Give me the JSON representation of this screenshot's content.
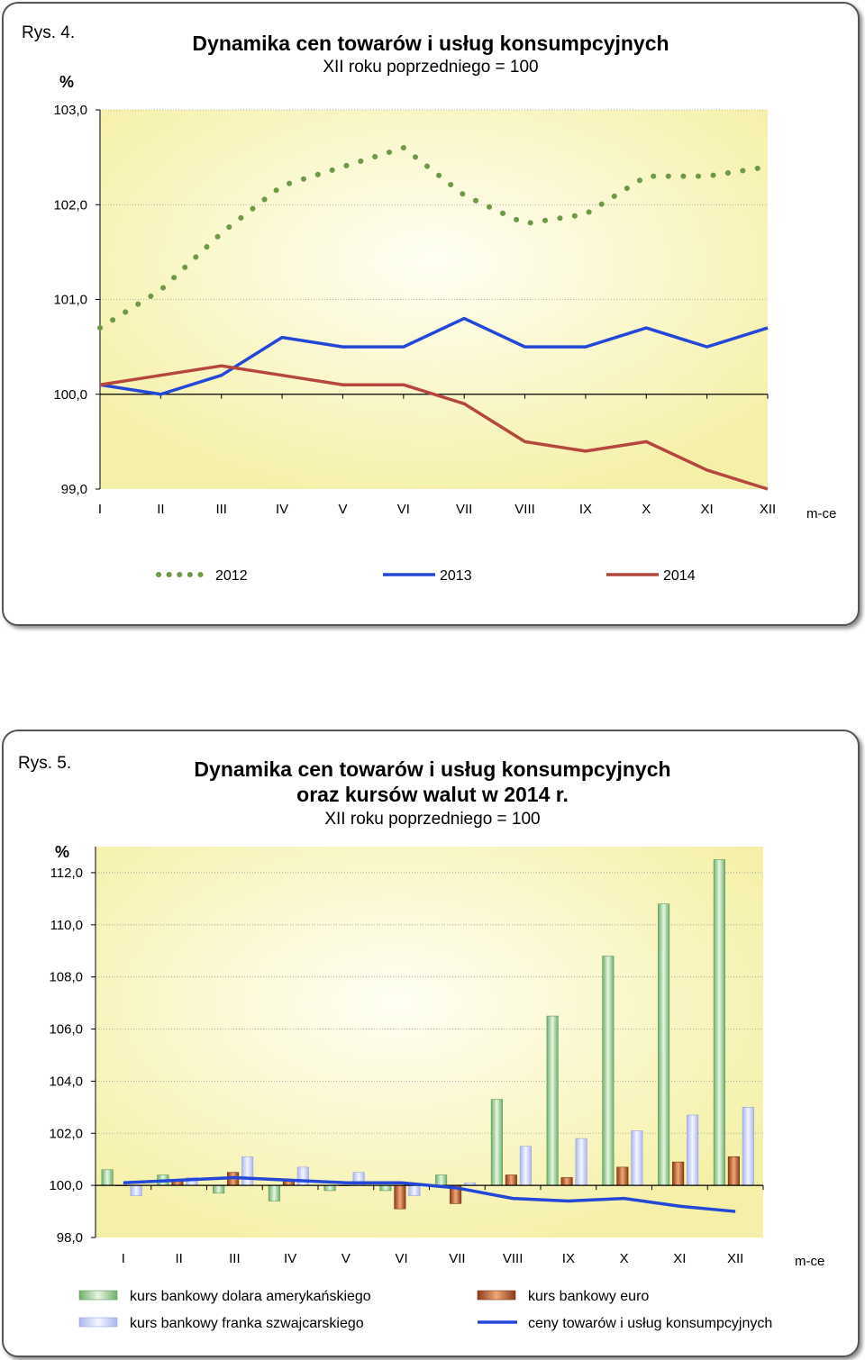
{
  "chart_data": [
    {
      "type": "line",
      "figure_label": "Rys. 4.",
      "title": "Dynamika cen towarów i usług konsumpcyjnych",
      "subtitle": "XII roku poprzedniego = 100",
      "ylabel": "%",
      "xlabel": "m-ce",
      "categories": [
        "I",
        "II",
        "III",
        "IV",
        "V",
        "VI",
        "VII",
        "VIII",
        "IX",
        "X",
        "XI",
        "XII"
      ],
      "y_ticks": [
        "99,0",
        "100,0",
        "101,0",
        "102,0",
        "103,0"
      ],
      "ylim": [
        99.0,
        103.0
      ],
      "grid": true,
      "legend_position": "bottom",
      "series": [
        {
          "name": "2012",
          "style": "dotted",
          "color": "#6e9a46",
          "values": [
            100.7,
            101.1,
            101.7,
            102.2,
            102.4,
            102.6,
            102.1,
            101.8,
            101.9,
            102.3,
            102.3,
            102.4
          ]
        },
        {
          "name": "2013",
          "style": "solid",
          "color": "#2347d6",
          "values": [
            100.1,
            100.0,
            100.2,
            100.6,
            100.5,
            100.5,
            100.8,
            100.5,
            100.5,
            100.7,
            100.5,
            100.7
          ]
        },
        {
          "name": "2014",
          "style": "solid",
          "color": "#b5473e",
          "values": [
            100.1,
            100.2,
            100.3,
            100.2,
            100.1,
            100.1,
            99.9,
            99.5,
            99.4,
            99.5,
            99.2,
            99.0
          ]
        }
      ]
    },
    {
      "type": "bar",
      "figure_label": "Rys. 5.",
      "title": "Dynamika cen towarów i usług konsumpcyjnych",
      "title_line2": "oraz kursów walut w 2014 r.",
      "subtitle": "XII roku poprzedniego = 100",
      "ylabel": "%",
      "xlabel": "m-ce",
      "categories": [
        "I",
        "II",
        "III",
        "IV",
        "V",
        "VI",
        "VII",
        "VIII",
        "IX",
        "X",
        "XI",
        "XII"
      ],
      "y_ticks": [
        "98,0",
        "100,0",
        "102,0",
        "104,0",
        "106,0",
        "108,0",
        "110,0",
        "112,0"
      ],
      "ylim": [
        98.0,
        113.0
      ],
      "baseline": 100.0,
      "grid": true,
      "legend_position": "bottom",
      "series": [
        {
          "name": "kurs bankowy dolara amerykańskiego",
          "kind": "bar",
          "color": "#9fd59b",
          "values": [
            100.6,
            100.4,
            99.7,
            99.4,
            99.8,
            99.8,
            100.4,
            103.3,
            106.5,
            108.8,
            110.8,
            112.5
          ]
        },
        {
          "name": "kurs bankowy euro",
          "kind": "bar",
          "color": "#a9552c",
          "values": [
            100.0,
            100.2,
            100.5,
            100.2,
            100.0,
            99.1,
            99.3,
            100.4,
            100.3,
            100.7,
            100.9,
            101.1
          ]
        },
        {
          "name": "kurs bankowy franka szwajcarskiego",
          "kind": "bar",
          "color": "#c4cdf5",
          "values": [
            99.6,
            100.3,
            101.1,
            100.7,
            100.5,
            99.6,
            100.1,
            101.5,
            101.8,
            102.1,
            102.7,
            103.0
          ]
        },
        {
          "name": "ceny towarów i usług konsumpcyjnych",
          "kind": "line",
          "color": "#2347d6",
          "values": [
            100.1,
            100.2,
            100.3,
            100.2,
            100.1,
            100.1,
            99.9,
            99.5,
            99.4,
            99.5,
            99.2,
            99.0
          ]
        }
      ]
    }
  ]
}
